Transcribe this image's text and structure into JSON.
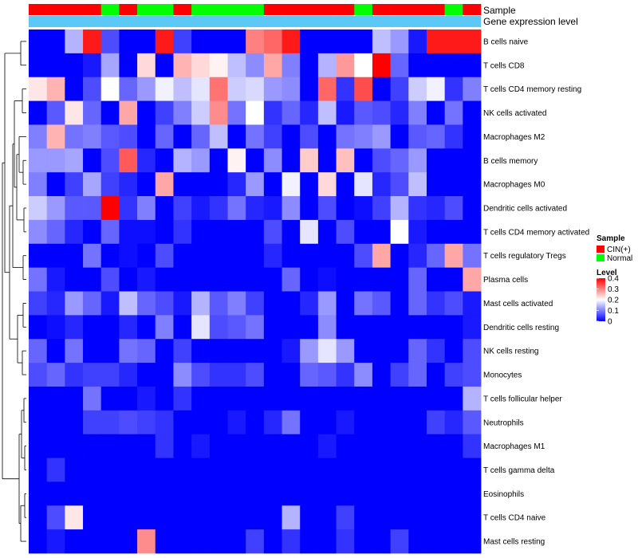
{
  "chart_data": {
    "type": "heatmap",
    "title": "",
    "xlabel": "",
    "ylabel": "",
    "row_labels": [
      "B cells naive",
      "T cells CD8",
      "T cells CD4 memory resting",
      "NK cells activated",
      "Macrophages M2",
      "B cells memory",
      "Macrophages M0",
      "Dendritic cells activated",
      "T cells CD4 memory activated",
      "T cells regulatory  Tregs",
      "Plasma cells",
      "Mast cells activated",
      "Dendritic cells resting",
      "NK cells resting",
      "Monocytes",
      "T cells follicular helper",
      "Neutrophils",
      "Macrophages M1",
      "T cells gamma delta",
      "Eosinophils",
      "T cells CD4 naive",
      "Mast cells resting"
    ],
    "column_samples": [
      "CIN(+)",
      "CIN(+)",
      "CIN(+)",
      "CIN(+)",
      "Normal",
      "CIN(+)",
      "Normal",
      "Normal",
      "CIN(+)",
      "Normal",
      "Normal",
      "Normal",
      "Normal",
      "CIN(+)",
      "CIN(+)",
      "CIN(+)",
      "CIN(+)",
      "CIN(+)",
      "Normal",
      "CIN(+)",
      "CIN(+)",
      "CIN(+)",
      "CIN(+)",
      "Normal",
      "CIN(+)"
    ],
    "annotations": {
      "sample_label": "Sample",
      "gene_label": "Gene expression level",
      "gene_color": "#5BC8F5"
    },
    "legend": {
      "sample_title": "Sample",
      "sample_items": [
        {
          "label": "CIN(+)",
          "color": "#FF0000"
        },
        {
          "label": "Normal",
          "color": "#00FF00"
        }
      ],
      "level_title": "Level",
      "level_range": [
        0,
        0.4
      ],
      "level_ticks": [
        "0.4",
        "0.3",
        "0.2",
        "0.1",
        "0"
      ]
    },
    "color_scale": {
      "low": "#0000FF",
      "mid": "#FFFFFF",
      "high": "#FF0000",
      "min": 0,
      "max": 0.4
    },
    "values": [
      [
        0,
        0,
        0.14,
        0.38,
        0.06,
        0,
        0,
        0.38,
        0.05,
        0,
        0,
        0,
        0.3,
        0.32,
        0.38,
        0,
        0,
        0,
        0,
        0.15,
        0.12,
        0.02,
        0.38,
        0.38,
        0.38
      ],
      [
        0,
        0,
        0,
        0.02,
        0.13,
        0,
        0.23,
        0,
        0.26,
        0.23,
        0.21,
        0.15,
        0.11,
        0.27,
        0.1,
        0,
        0.14,
        0.28,
        0.2,
        0.4,
        0.08,
        0,
        0,
        0,
        0
      ],
      [
        0.22,
        0.26,
        0,
        0.06,
        0.2,
        0.08,
        0.12,
        0.19,
        0.15,
        0.18,
        0.31,
        0.16,
        0.17,
        0.12,
        0.11,
        0,
        0.32,
        0.04,
        0.34,
        0,
        0.05,
        0.16,
        0.19,
        0.04,
        0.1
      ],
      [
        0,
        0.07,
        0.22,
        0.08,
        0,
        0.27,
        0,
        0.05,
        0.1,
        0.16,
        0.29,
        0.09,
        0.2,
        0.04,
        0.08,
        0.03,
        0.15,
        0.02,
        0.07,
        0.06,
        0.03,
        0.1,
        0,
        0.09,
        0
      ],
      [
        0.1,
        0.26,
        0.09,
        0.1,
        0.07,
        0.06,
        0,
        0.08,
        0,
        0.08,
        0.15,
        0,
        0.09,
        0.05,
        0,
        0.06,
        0,
        0.09,
        0.1,
        0.12,
        0,
        0.07,
        0.08,
        0.04,
        0
      ],
      [
        0.12,
        0.12,
        0.13,
        0,
        0.06,
        0.33,
        0.03,
        0,
        0.14,
        0.12,
        0,
        0.21,
        0,
        0.11,
        0,
        0.24,
        0,
        0.25,
        0,
        0.06,
        0.08,
        0.12,
        0,
        0,
        0
      ],
      [
        0.1,
        0,
        0.05,
        0.13,
        0.05,
        0.03,
        0,
        0.27,
        0,
        0,
        0,
        0.03,
        0.12,
        0,
        0.19,
        0,
        0.23,
        0,
        0.18,
        0.03,
        0.06,
        0.15,
        0,
        0,
        0
      ],
      [
        0.16,
        0.12,
        0.07,
        0.07,
        0.4,
        0.04,
        0.1,
        0,
        0.05,
        0.02,
        0.04,
        0.09,
        0.03,
        0.02,
        0.11,
        0,
        0.06,
        0,
        0.01,
        0.05,
        0.14,
        0.04,
        0.03,
        0.06,
        0
      ],
      [
        0.11,
        0.08,
        0.03,
        0,
        0.08,
        0.01,
        0.01,
        0,
        0.04,
        0,
        0,
        0,
        0,
        0.06,
        0,
        0.18,
        0,
        0.06,
        0,
        0,
        0.2,
        0.02,
        0,
        0,
        0
      ],
      [
        0,
        0,
        0,
        0.09,
        0,
        0.01,
        0,
        0.06,
        0,
        0,
        0,
        0,
        0,
        0.03,
        0,
        0,
        0,
        0,
        0.06,
        0.27,
        0,
        0.03,
        0.08,
        0.27,
        0.09
      ],
      [
        0.09,
        0.02,
        0,
        0,
        0.06,
        0,
        0.02,
        0,
        0,
        0,
        0,
        0,
        0,
        0,
        0.08,
        0,
        0.01,
        0,
        0,
        0,
        0,
        0.08,
        0,
        0,
        0.27
      ],
      [
        0.05,
        0.03,
        0.12,
        0.08,
        0.02,
        0.15,
        0.08,
        0.06,
        0.02,
        0.14,
        0.07,
        0.1,
        0.05,
        0,
        0,
        0.03,
        0.12,
        0,
        0.09,
        0.07,
        0,
        0.08,
        0.04,
        0.06,
        0.02
      ],
      [
        0,
        0.01,
        0.03,
        0,
        0,
        0.03,
        0,
        0.1,
        0,
        0.18,
        0.06,
        0.07,
        0.09,
        0,
        0,
        0,
        0.11,
        0,
        0,
        0,
        0,
        0,
        0,
        0,
        0.02
      ],
      [
        0.08,
        0,
        0.09,
        0,
        0,
        0.09,
        0.08,
        0,
        0.05,
        0,
        0,
        0,
        0,
        0,
        0.02,
        0.12,
        0.18,
        0.12,
        0,
        0,
        0,
        0.08,
        0.04,
        0,
        0.06
      ],
      [
        0.06,
        0.08,
        0.04,
        0.05,
        0.05,
        0.03,
        0,
        0,
        0.11,
        0.06,
        0.04,
        0.04,
        0.06,
        0,
        0,
        0.08,
        0.07,
        0.04,
        0.11,
        0,
        0.05,
        0.08,
        0,
        0.05,
        0.06
      ],
      [
        0,
        0,
        0,
        0.09,
        0,
        0,
        0.02,
        0,
        0.04,
        0,
        0,
        0,
        0,
        0,
        0,
        0,
        0,
        0,
        0,
        0,
        0,
        0,
        0,
        0,
        0.14
      ],
      [
        0,
        0,
        0,
        0.05,
        0.05,
        0.06,
        0.05,
        0.04,
        0,
        0,
        0,
        0.02,
        0,
        0.03,
        0.09,
        0,
        0,
        0.02,
        0,
        0,
        0,
        0,
        0.05,
        0.03,
        0.07
      ],
      [
        0,
        0,
        0,
        0,
        0,
        0,
        0,
        0.04,
        0,
        0.02,
        0,
        0,
        0,
        0,
        0,
        0,
        0.02,
        0,
        0,
        0,
        0,
        0,
        0,
        0,
        0.04
      ],
      [
        0,
        0.04,
        0,
        0,
        0,
        0,
        0,
        0,
        0,
        0,
        0,
        0,
        0,
        0,
        0,
        0,
        0,
        0,
        0,
        0,
        0,
        0,
        0,
        0,
        0
      ],
      [
        0,
        0,
        0,
        0,
        0,
        0,
        0,
        0,
        0,
        0,
        0,
        0,
        0,
        0,
        0,
        0,
        0,
        0,
        0,
        0,
        0,
        0,
        0,
        0,
        0
      ],
      [
        0,
        0.06,
        0.22,
        0,
        0,
        0,
        0,
        0,
        0,
        0,
        0,
        0,
        0,
        0,
        0.14,
        0,
        0,
        0.05,
        0,
        0,
        0,
        0,
        0,
        0,
        0
      ],
      [
        0,
        0.02,
        0,
        0,
        0,
        0,
        0.29,
        0,
        0,
        0,
        0,
        0,
        0.05,
        0,
        0.04,
        0,
        0,
        0.04,
        0,
        0,
        0.05,
        0,
        0,
        0,
        0
      ]
    ]
  }
}
